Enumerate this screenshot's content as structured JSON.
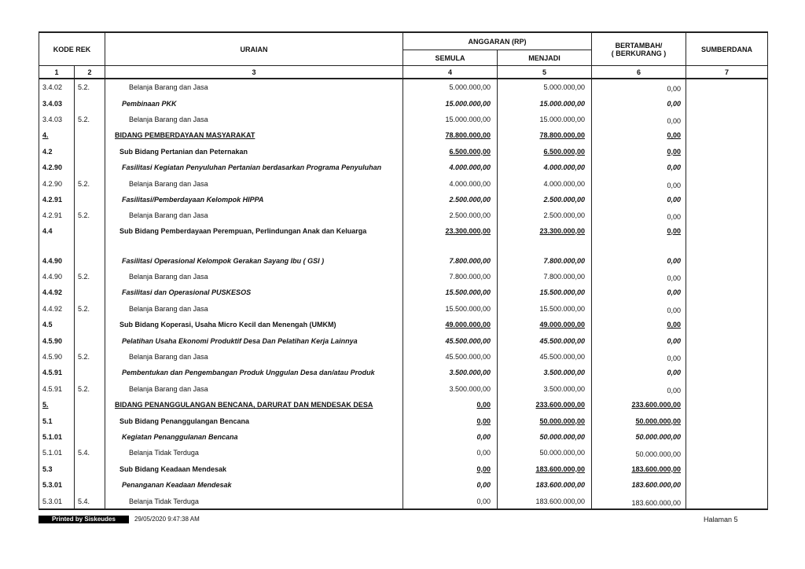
{
  "header": {
    "kode_rek": "KODE REK",
    "uraian": "URAIAN",
    "anggaran": "ANGGARAN (RP)",
    "semula": "SEMULA",
    "menjadi": "MENJADI",
    "bertambah": "BERTAMBAH/",
    "berkurang": "( BERKURANG )",
    "sumberdana": "SUMBERDANA",
    "col_numbers": [
      "1",
      "2",
      "3",
      "4",
      "5",
      "6",
      "7"
    ]
  },
  "rows": [
    {
      "type": "item",
      "k1": "3.4.02",
      "k2": "5.2.",
      "uraian": "Belanja Barang dan Jasa",
      "semula": "5.000.000,00",
      "menjadi": "5.000.000,00",
      "selisih": "0,00"
    },
    {
      "type": "keg",
      "k1": "3.4.03",
      "k2": "",
      "uraian": "Pembinaan PKK",
      "semula": "15.000.000,00",
      "menjadi": "15.000.000,00",
      "selisih": "0,00"
    },
    {
      "type": "item",
      "k1": "3.4.03",
      "k2": "5.2.",
      "uraian": "Belanja Barang dan Jasa",
      "semula": "15.000.000,00",
      "menjadi": "15.000.000,00",
      "selisih": "0,00"
    },
    {
      "type": "bid",
      "k1": "4.",
      "k2": "",
      "uraian": "BIDANG PEMBERDAYAAN MASYARAKAT",
      "semula": "78.800.000,00",
      "menjadi": "78.800.000,00",
      "selisih": "0,00"
    },
    {
      "type": "sub",
      "k1": "4.2",
      "k2": "",
      "uraian": "Sub Bidang Pertanian dan Peternakan",
      "semula": "6.500.000,00",
      "menjadi": "6.500.000,00",
      "selisih": "0,00"
    },
    {
      "type": "keg",
      "k1": "4.2.90",
      "k2": "",
      "uraian": "Fasilitasi Kegiatan Penyuluhan Pertanian berdasarkan Programa Penyuluhan",
      "semula": "4.000.000,00",
      "menjadi": "4.000.000,00",
      "selisih": "0,00"
    },
    {
      "type": "item",
      "k1": "4.2.90",
      "k2": "5.2.",
      "uraian": "Belanja Barang dan Jasa",
      "semula": "4.000.000,00",
      "menjadi": "4.000.000,00",
      "selisih": "0,00"
    },
    {
      "type": "keg",
      "k1": "4.2.91",
      "k2": "",
      "uraian": "Fasilitasi/Pemberdayaan Kelompok HIPPA",
      "semula": "2.500.000,00",
      "menjadi": "2.500.000,00",
      "selisih": "0,00"
    },
    {
      "type": "item",
      "k1": "4.2.91",
      "k2": "5.2.",
      "uraian": "Belanja Barang dan Jasa",
      "semula": "2.500.000,00",
      "menjadi": "2.500.000,00",
      "selisih": "0,00"
    },
    {
      "type": "sub",
      "tall": true,
      "k1": "4.4",
      "k2": "",
      "uraian": "Sub Bidang Pemberdayaan Perempuan, Perlindungan Anak dan Keluarga",
      "semula": "23.300.000,00",
      "menjadi": "23.300.000,00",
      "selisih": "0,00"
    },
    {
      "type": "keg",
      "k1": "4.4.90",
      "k2": "",
      "uraian": "Fasilitasi Operasional Kelompok Gerakan Sayang Ibu ( GSI )",
      "semula": "7.800.000,00",
      "menjadi": "7.800.000,00",
      "selisih": "0,00"
    },
    {
      "type": "item",
      "k1": "4.4.90",
      "k2": "5.2.",
      "uraian": "Belanja Barang dan Jasa",
      "semula": "7.800.000,00",
      "menjadi": "7.800.000,00",
      "selisih": "0,00"
    },
    {
      "type": "keg",
      "k1": "4.4.92",
      "k2": "",
      "uraian": "Fasilitasi dan Operasional PUSKESOS",
      "semula": "15.500.000,00",
      "menjadi": "15.500.000,00",
      "selisih": "0,00"
    },
    {
      "type": "item",
      "k1": "4.4.92",
      "k2": "5.2.",
      "uraian": "Belanja Barang dan Jasa",
      "semula": "15.500.000,00",
      "menjadi": "15.500.000,00",
      "selisih": "0,00"
    },
    {
      "type": "sub",
      "k1": "4.5",
      "k2": "",
      "uraian": "Sub Bidang Koperasi, Usaha Micro Kecil dan Menengah (UMKM)",
      "semula": "49.000.000,00",
      "menjadi": "49.000.000,00",
      "selisih": "0,00"
    },
    {
      "type": "keg",
      "k1": "4.5.90",
      "k2": "",
      "uraian": "Pelatihan Usaha Ekonomi Produktif Desa Dan Pelatihan Kerja Lainnya",
      "semula": "45.500.000,00",
      "menjadi": "45.500.000,00",
      "selisih": "0,00"
    },
    {
      "type": "item",
      "k1": "4.5.90",
      "k2": "5.2.",
      "uraian": "Belanja Barang dan Jasa",
      "semula": "45.500.000,00",
      "menjadi": "45.500.000,00",
      "selisih": "0,00"
    },
    {
      "type": "keg",
      "k1": "4.5.91",
      "k2": "",
      "uraian": "Pembentukan dan Pengembangan Produk Unggulan Desa dan/atau Produk",
      "semula": "3.500.000,00",
      "menjadi": "3.500.000,00",
      "selisih": "0,00"
    },
    {
      "type": "item",
      "k1": "4.5.91",
      "k2": "5.2.",
      "uraian": "Belanja Barang dan Jasa",
      "semula": "3.500.000,00",
      "menjadi": "3.500.000,00",
      "selisih": "0,00"
    },
    {
      "type": "bid",
      "k1": "5.",
      "k2": "",
      "uraian": "BIDANG PENANGGULANGAN BENCANA, DARURAT DAN MENDESAK DESA",
      "semula": "0,00",
      "menjadi": "233.600.000,00",
      "selisih": "233.600.000,00"
    },
    {
      "type": "sub",
      "k1": "5.1",
      "k2": "",
      "uraian": "Sub Bidang Penanggulangan Bencana",
      "semula": "0,00",
      "menjadi": "50.000.000,00",
      "selisih": "50.000.000,00"
    },
    {
      "type": "keg",
      "k1": "5.1.01",
      "k2": "",
      "uraian": "Kegiatan Penanggulanan Bencana",
      "semula": "0,00",
      "menjadi": "50.000.000,00",
      "selisih": "50.000.000,00"
    },
    {
      "type": "item",
      "k1": "5.1.01",
      "k2": "5.4.",
      "uraian": "Belanja Tidak Terduga",
      "semula": "0,00",
      "menjadi": "50.000.000,00",
      "selisih": "50.000.000,00"
    },
    {
      "type": "sub",
      "k1": "5.3",
      "k2": "",
      "uraian": "Sub Bidang Keadaan Mendesak",
      "semula": "0,00",
      "menjadi": "183.600.000,00",
      "selisih": "183.600.000,00"
    },
    {
      "type": "keg",
      "k1": "5.3.01",
      "k2": "",
      "uraian": "Penanganan Keadaan Mendesak",
      "semula": "0,00",
      "menjadi": "183.600.000,00",
      "selisih": "183.600.000,00"
    },
    {
      "type": "item",
      "k1": "5.3.01",
      "k2": "5.4.",
      "uraian": "Belanja Tidak Terduga",
      "semula": "0,00",
      "menjadi": "183.600.000,00",
      "selisih": "183.600.000,00"
    }
  ],
  "footer": {
    "printed_by": "Printed by Siskeudes",
    "timestamp": "29/05/2020 9:47:38 AM",
    "page": "Halaman 5"
  }
}
